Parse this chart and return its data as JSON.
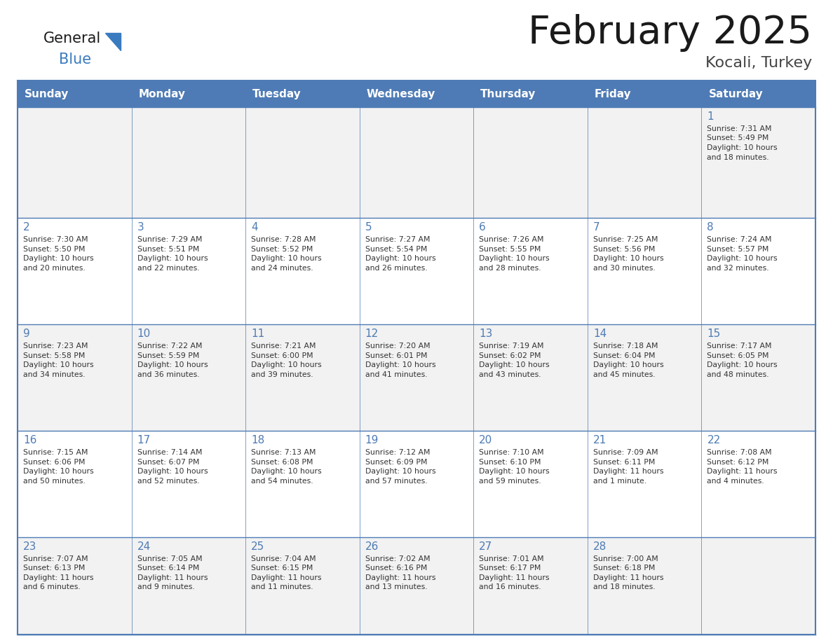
{
  "title": "February 2025",
  "subtitle": "Kocali, Turkey",
  "days_of_week": [
    "Sunday",
    "Monday",
    "Tuesday",
    "Wednesday",
    "Thursday",
    "Friday",
    "Saturday"
  ],
  "header_bg": "#4E7BB5",
  "header_text": "#FFFFFF",
  "cell_bg_odd": "#F2F2F2",
  "cell_bg_even": "#FFFFFF",
  "border_color": "#4E7BB5",
  "title_color": "#1a1a1a",
  "subtitle_color": "#444444",
  "day_num_color": "#4E7BB5",
  "cell_text_color": "#333333",
  "logo_general_color": "#1a1a1a",
  "logo_blue_color": "#3a7abf",
  "calendar_data": [
    [
      null,
      null,
      null,
      null,
      null,
      null,
      {
        "day": 1,
        "sunrise": "7:31 AM",
        "sunset": "5:49 PM",
        "daylight": "10 hours\nand 18 minutes."
      }
    ],
    [
      {
        "day": 2,
        "sunrise": "7:30 AM",
        "sunset": "5:50 PM",
        "daylight": "10 hours\nand 20 minutes."
      },
      {
        "day": 3,
        "sunrise": "7:29 AM",
        "sunset": "5:51 PM",
        "daylight": "10 hours\nand 22 minutes."
      },
      {
        "day": 4,
        "sunrise": "7:28 AM",
        "sunset": "5:52 PM",
        "daylight": "10 hours\nand 24 minutes."
      },
      {
        "day": 5,
        "sunrise": "7:27 AM",
        "sunset": "5:54 PM",
        "daylight": "10 hours\nand 26 minutes."
      },
      {
        "day": 6,
        "sunrise": "7:26 AM",
        "sunset": "5:55 PM",
        "daylight": "10 hours\nand 28 minutes."
      },
      {
        "day": 7,
        "sunrise": "7:25 AM",
        "sunset": "5:56 PM",
        "daylight": "10 hours\nand 30 minutes."
      },
      {
        "day": 8,
        "sunrise": "7:24 AM",
        "sunset": "5:57 PM",
        "daylight": "10 hours\nand 32 minutes."
      }
    ],
    [
      {
        "day": 9,
        "sunrise": "7:23 AM",
        "sunset": "5:58 PM",
        "daylight": "10 hours\nand 34 minutes."
      },
      {
        "day": 10,
        "sunrise": "7:22 AM",
        "sunset": "5:59 PM",
        "daylight": "10 hours\nand 36 minutes."
      },
      {
        "day": 11,
        "sunrise": "7:21 AM",
        "sunset": "6:00 PM",
        "daylight": "10 hours\nand 39 minutes."
      },
      {
        "day": 12,
        "sunrise": "7:20 AM",
        "sunset": "6:01 PM",
        "daylight": "10 hours\nand 41 minutes."
      },
      {
        "day": 13,
        "sunrise": "7:19 AM",
        "sunset": "6:02 PM",
        "daylight": "10 hours\nand 43 minutes."
      },
      {
        "day": 14,
        "sunrise": "7:18 AM",
        "sunset": "6:04 PM",
        "daylight": "10 hours\nand 45 minutes."
      },
      {
        "day": 15,
        "sunrise": "7:17 AM",
        "sunset": "6:05 PM",
        "daylight": "10 hours\nand 48 minutes."
      }
    ],
    [
      {
        "day": 16,
        "sunrise": "7:15 AM",
        "sunset": "6:06 PM",
        "daylight": "10 hours\nand 50 minutes."
      },
      {
        "day": 17,
        "sunrise": "7:14 AM",
        "sunset": "6:07 PM",
        "daylight": "10 hours\nand 52 minutes."
      },
      {
        "day": 18,
        "sunrise": "7:13 AM",
        "sunset": "6:08 PM",
        "daylight": "10 hours\nand 54 minutes."
      },
      {
        "day": 19,
        "sunrise": "7:12 AM",
        "sunset": "6:09 PM",
        "daylight": "10 hours\nand 57 minutes."
      },
      {
        "day": 20,
        "sunrise": "7:10 AM",
        "sunset": "6:10 PM",
        "daylight": "10 hours\nand 59 minutes."
      },
      {
        "day": 21,
        "sunrise": "7:09 AM",
        "sunset": "6:11 PM",
        "daylight": "11 hours\nand 1 minute."
      },
      {
        "day": 22,
        "sunrise": "7:08 AM",
        "sunset": "6:12 PM",
        "daylight": "11 hours\nand 4 minutes."
      }
    ],
    [
      {
        "day": 23,
        "sunrise": "7:07 AM",
        "sunset": "6:13 PM",
        "daylight": "11 hours\nand 6 minutes."
      },
      {
        "day": 24,
        "sunrise": "7:05 AM",
        "sunset": "6:14 PM",
        "daylight": "11 hours\nand 9 minutes."
      },
      {
        "day": 25,
        "sunrise": "7:04 AM",
        "sunset": "6:15 PM",
        "daylight": "11 hours\nand 11 minutes."
      },
      {
        "day": 26,
        "sunrise": "7:02 AM",
        "sunset": "6:16 PM",
        "daylight": "11 hours\nand 13 minutes."
      },
      {
        "day": 27,
        "sunrise": "7:01 AM",
        "sunset": "6:17 PM",
        "daylight": "11 hours\nand 16 minutes."
      },
      {
        "day": 28,
        "sunrise": "7:00 AM",
        "sunset": "6:18 PM",
        "daylight": "11 hours\nand 18 minutes."
      },
      null
    ]
  ]
}
